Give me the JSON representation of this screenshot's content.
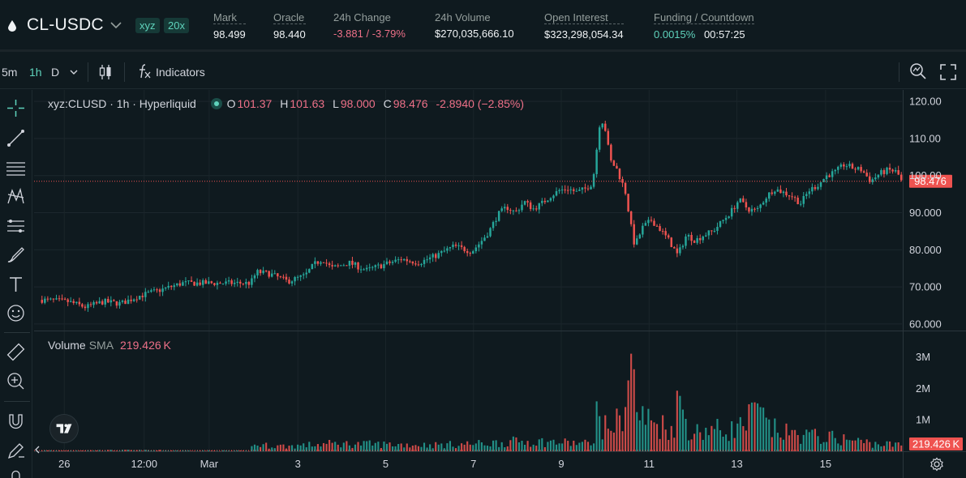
{
  "header": {
    "pair": "CL-USDC",
    "badges": {
      "dex": "xyz",
      "leverage": "20x"
    },
    "stats": {
      "mark": {
        "label": "Mark",
        "value": "98.499"
      },
      "oracle": {
        "label": "Oracle",
        "value": "98.440"
      },
      "change": {
        "label": "24h Change",
        "value": "-3.881 / -3.79%"
      },
      "volume": {
        "label": "24h Volume",
        "value": "$270,035,666.10"
      },
      "open_interest": {
        "label": "Open Interest",
        "value": "$323,298,054.34"
      },
      "funding": {
        "label": "Funding / Countdown",
        "rate": "0.0015%",
        "countdown": "00:57:25"
      }
    }
  },
  "toolbar": {
    "intervals": [
      "5m",
      "1h",
      "D"
    ],
    "selected_interval": "1h",
    "indicators_label": "Indicators"
  },
  "legend": {
    "symbol": "xyz:CLUSD · 1h · Hyperliquid",
    "o_label": "O",
    "o": "101.37",
    "h_label": "H",
    "h": "101.63",
    "l_label": "L",
    "l": "98.000",
    "c_label": "C",
    "c": "98.476",
    "change": "-2.8940 (−2.85%)"
  },
  "volume_legend": {
    "label": "Volume",
    "sma": "SMA",
    "value": "219.426 K"
  },
  "colors": {
    "up": "#26a69a",
    "down": "#ef5350",
    "accent": "#5fd3bc",
    "price_tag": "#ef5350"
  },
  "chart_data": {
    "type": "candlestick",
    "price_axis": {
      "ticks": [
        "120.00",
        "110.00",
        "100.00",
        "90.000",
        "80.000",
        "70.000",
        "60.000"
      ],
      "range": [
        58,
        122
      ]
    },
    "volume_axis": {
      "ticks": [
        "3M",
        "2M",
        "1M"
      ],
      "range": [
        0,
        3500000
      ]
    },
    "time_axis": [
      "26",
      "12:00",
      "Mar",
      "3",
      "5",
      "7",
      "9",
      "11",
      "13",
      "15"
    ],
    "last_price": "98.476",
    "last_volume": "219.426 K",
    "price_path": [
      [
        0,
        66.5
      ],
      [
        3,
        66
      ],
      [
        5,
        64.5
      ],
      [
        7,
        66
      ],
      [
        9,
        65.5
      ],
      [
        11,
        67.5
      ],
      [
        14,
        69.5
      ],
      [
        16,
        71
      ],
      [
        17.5,
        71
      ],
      [
        23.8,
        71
      ],
      [
        24,
        72
      ],
      [
        24.5,
        74
      ],
      [
        26,
        73.5
      ],
      [
        28,
        71.5
      ],
      [
        30,
        73
      ],
      [
        31,
        76
      ],
      [
        32,
        77.5
      ],
      [
        33,
        75
      ],
      [
        35,
        76.5
      ],
      [
        37,
        74.5
      ],
      [
        39,
        76
      ],
      [
        41,
        77.5
      ],
      [
        43,
        76.5
      ],
      [
        45,
        78.5
      ],
      [
        47,
        81
      ],
      [
        49,
        79.5
      ],
      [
        50,
        82
      ],
      [
        51,
        85
      ],
      [
        52,
        89.5
      ],
      [
        53,
        91.5
      ],
      [
        54,
        90
      ],
      [
        55,
        93
      ],
      [
        56,
        91
      ],
      [
        57,
        92.5
      ],
      [
        58,
        94.5
      ],
      [
        59,
        96
      ],
      [
        60,
        96.5
      ],
      [
        61,
        95.5
      ],
      [
        62,
        96.5
      ],
      [
        62.8,
        98
      ],
      [
        63.3,
        108
      ],
      [
        63.7,
        116
      ],
      [
        64.3,
        112
      ],
      [
        64.8,
        104
      ],
      [
        65.5,
        102
      ],
      [
        66.5,
        96
      ],
      [
        67.2,
        86
      ],
      [
        67.6,
        81
      ],
      [
        68.5,
        86
      ],
      [
        69.5,
        88
      ],
      [
        70.5,
        85.5
      ],
      [
        71.5,
        82.5
      ],
      [
        72.5,
        78.5
      ],
      [
        73.5,
        84
      ],
      [
        74.5,
        82.5
      ],
      [
        75.5,
        84
      ],
      [
        76.5,
        85
      ],
      [
        77.5,
        87.5
      ],
      [
        78.5,
        90
      ],
      [
        79.5,
        93.5
      ],
      [
        80.5,
        91
      ],
      [
        81.5,
        90.5
      ],
      [
        82.5,
        94
      ],
      [
        83.5,
        96.5
      ],
      [
        84.5,
        95.5
      ],
      [
        85.5,
        94.5
      ],
      [
        86.5,
        92.5
      ],
      [
        87.5,
        96
      ],
      [
        88.5,
        97.5
      ],
      [
        89.5,
        100
      ],
      [
        90.5,
        101
      ],
      [
        91.5,
        103
      ],
      [
        92.5,
        102
      ],
      [
        93.5,
        101.5
      ],
      [
        94.5,
        98.5
      ],
      [
        95.5,
        100.5
      ],
      [
        96.5,
        101.5
      ],
      [
        97.5,
        101
      ],
      [
        98,
        98.5
      ]
    ],
    "volume_path": [
      [
        0,
        30000
      ],
      [
        10,
        40000
      ],
      [
        23.8,
        20000
      ],
      [
        24,
        250000
      ],
      [
        28,
        200000
      ],
      [
        33,
        300000
      ],
      [
        38,
        280000
      ],
      [
        45,
        250000
      ],
      [
        50,
        300000
      ],
      [
        55,
        400000
      ],
      [
        62.8,
        300000
      ],
      [
        63.2,
        1500000
      ],
      [
        64,
        900000
      ],
      [
        66,
        1200000
      ],
      [
        67.2,
        3400000
      ],
      [
        68,
        1400000
      ],
      [
        70,
        1100000
      ],
      [
        72,
        900000
      ],
      [
        72.6,
        2100000
      ],
      [
        74,
        700000
      ],
      [
        76,
        900000
      ],
      [
        78,
        800000
      ],
      [
        80,
        1000000
      ],
      [
        81.5,
        1600000
      ],
      [
        83,
        900000
      ],
      [
        85,
        700000
      ],
      [
        88,
        600000
      ],
      [
        91,
        500000
      ],
      [
        95,
        300000
      ],
      [
        98,
        250000
      ]
    ]
  }
}
